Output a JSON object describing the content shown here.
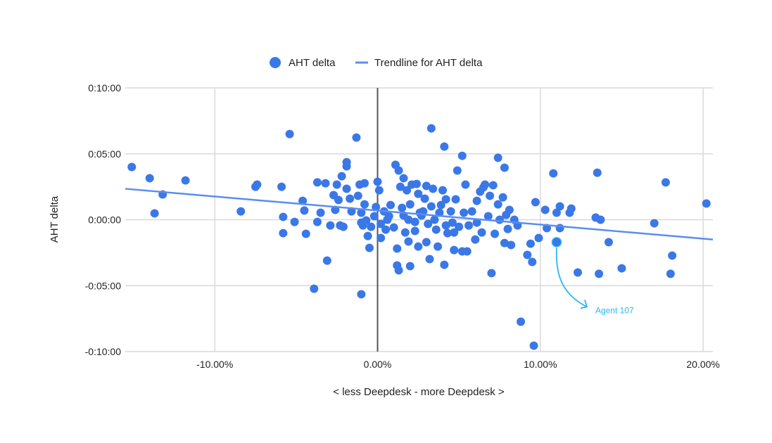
{
  "chart_data": {
    "type": "scatter",
    "title": "",
    "xlabel": "< less Deepdesk - more Deepdesk >",
    "ylabel": "AHT delta",
    "x_unit": "percent",
    "y_unit": "seconds",
    "xlim": [
      -15.5,
      20.6
    ],
    "ylim": [
      -600,
      600
    ],
    "x_ticks": [
      {
        "value": -10,
        "label": "-10.00%"
      },
      {
        "value": 0,
        "label": "0.00%"
      },
      {
        "value": 10,
        "label": "10.00%"
      },
      {
        "value": 20,
        "label": "20.00%"
      }
    ],
    "y_ticks": [
      {
        "value": 600,
        "label": "0:10:00"
      },
      {
        "value": 300,
        "label": "0:05:00"
      },
      {
        "value": 0,
        "label": "0:00:00"
      },
      {
        "value": -300,
        "label": "-0:05:00"
      },
      {
        "value": -600,
        "label": "-0:10:00"
      }
    ],
    "grid": true,
    "legend": {
      "position": "top",
      "entries": [
        "AHT delta",
        "Trendline for AHT delta"
      ]
    },
    "colors": {
      "points": "#3b78e7",
      "trendline": "#5b8def",
      "annotation": "#29b6f6",
      "grid": "#d9d9d9",
      "zero_axis": "#555555"
    },
    "series": [
      {
        "name": "AHT delta",
        "points": [
          [
            -15.1,
            240
          ],
          [
            -14.0,
            189
          ],
          [
            -13.7,
            29
          ],
          [
            -13.2,
            115
          ],
          [
            -11.8,
            179
          ],
          [
            -8.4,
            38
          ],
          [
            -7.5,
            150
          ],
          [
            -7.4,
            160
          ],
          [
            -5.9,
            150
          ],
          [
            -5.8,
            13
          ],
          [
            -5.8,
            -61
          ],
          [
            -5.4,
            390
          ],
          [
            -5.1,
            -10
          ],
          [
            -4.6,
            86
          ],
          [
            -4.5,
            42
          ],
          [
            -4.4,
            -64
          ],
          [
            -3.9,
            -314
          ],
          [
            -3.7,
            170
          ],
          [
            -3.7,
            -10
          ],
          [
            -3.5,
            32
          ],
          [
            -3.2,
            166
          ],
          [
            -3.1,
            -186
          ],
          [
            -2.9,
            -26
          ],
          [
            -2.7,
            112
          ],
          [
            -2.6,
            45
          ],
          [
            -2.5,
            160
          ],
          [
            -2.4,
            90
          ],
          [
            -2.3,
            -26
          ],
          [
            -2.2,
            198
          ],
          [
            -2.1,
            -32
          ],
          [
            -1.9,
            243
          ],
          [
            -1.9,
            262
          ],
          [
            -1.9,
            141
          ],
          [
            -1.7,
            96
          ],
          [
            -1.6,
            38
          ],
          [
            -1.3,
            374
          ],
          [
            -1.2,
            109
          ],
          [
            -1.1,
            160
          ],
          [
            -1.0,
            -339
          ],
          [
            -1.0,
            32
          ],
          [
            -1.0,
            -13
          ],
          [
            -0.9,
            -26
          ],
          [
            -0.8,
            166
          ],
          [
            -0.8,
            70
          ],
          [
            -0.7,
            -3
          ],
          [
            -0.6,
            -74
          ],
          [
            -0.5,
            -128
          ],
          [
            -0.4,
            -32
          ],
          [
            -0.2,
            16
          ],
          [
            -0.1,
            58
          ],
          [
            0,
            173
          ],
          [
            0.1,
            134
          ],
          [
            0.2,
            -19
          ],
          [
            0.2,
            -83
          ],
          [
            0.4,
            38
          ],
          [
            0.5,
            -45
          ],
          [
            0.6,
            0
          ],
          [
            0.7,
            16
          ],
          [
            0.8,
            67
          ],
          [
            1.0,
            -35
          ],
          [
            1.1,
            250
          ],
          [
            1.2,
            -208
          ],
          [
            1.2,
            -131
          ],
          [
            1.3,
            -230
          ],
          [
            1.3,
            224
          ],
          [
            1.4,
            150
          ],
          [
            1.5,
            54
          ],
          [
            1.6,
            19
          ],
          [
            1.6,
            189
          ],
          [
            1.7,
            -58
          ],
          [
            1.8,
            134
          ],
          [
            1.9,
            0
          ],
          [
            1.9,
            -99
          ],
          [
            2.0,
            -211
          ],
          [
            2.0,
            70
          ],
          [
            2.1,
            160
          ],
          [
            2.3,
            -10
          ],
          [
            2.3,
            -51
          ],
          [
            2.4,
            163
          ],
          [
            2.5,
            118
          ],
          [
            2.5,
            -122
          ],
          [
            2.6,
            32
          ],
          [
            2.7,
            19
          ],
          [
            2.8,
            38
          ],
          [
            2.9,
            96
          ],
          [
            3.0,
            154
          ],
          [
            3.0,
            -102
          ],
          [
            3.1,
            -19
          ],
          [
            3.2,
            -179
          ],
          [
            3.3,
            416
          ],
          [
            3.3,
            61
          ],
          [
            3.4,
            141
          ],
          [
            3.5,
            0
          ],
          [
            3.6,
            -45
          ],
          [
            3.7,
            -122
          ],
          [
            3.8,
            32
          ],
          [
            3.9,
            67
          ],
          [
            4.0,
            134
          ],
          [
            4.1,
            -205
          ],
          [
            4.1,
            333
          ],
          [
            4.2,
            -26
          ],
          [
            4.2,
            93
          ],
          [
            4.3,
            -61
          ],
          [
            4.5,
            38
          ],
          [
            4.6,
            -13
          ],
          [
            4.7,
            -138
          ],
          [
            4.7,
            -58
          ],
          [
            4.8,
            93
          ],
          [
            4.9,
            224
          ],
          [
            5.0,
            -32
          ],
          [
            5.2,
            -144
          ],
          [
            5.2,
            291
          ],
          [
            5.3,
            32
          ],
          [
            5.4,
            160
          ],
          [
            5.5,
            -144
          ],
          [
            5.6,
            -26
          ],
          [
            5.8,
            38
          ],
          [
            6.0,
            -90
          ],
          [
            6.1,
            -13
          ],
          [
            6.1,
            86
          ],
          [
            6.3,
            128
          ],
          [
            6.4,
            -58
          ],
          [
            6.5,
            147
          ],
          [
            6.6,
            160
          ],
          [
            6.8,
            16
          ],
          [
            6.9,
            109
          ],
          [
            7.0,
            -243
          ],
          [
            7.1,
            157
          ],
          [
            7.2,
            -64
          ],
          [
            7.4,
            282
          ],
          [
            7.4,
            70
          ],
          [
            7.5,
            0
          ],
          [
            7.7,
            102
          ],
          [
            7.8,
            -106
          ],
          [
            7.8,
            237
          ],
          [
            7.9,
            22
          ],
          [
            8.0,
            -42
          ],
          [
            8.1,
            45
          ],
          [
            8.2,
            -115
          ],
          [
            8.4,
            0
          ],
          [
            8.6,
            -26
          ],
          [
            8.8,
            -464
          ],
          [
            9.2,
            -160
          ],
          [
            9.4,
            -109
          ],
          [
            9.5,
            -192
          ],
          [
            9.6,
            -573
          ],
          [
            9.7,
            80
          ],
          [
            9.9,
            -83
          ],
          [
            10.3,
            45
          ],
          [
            10.4,
            -38
          ],
          [
            10.8,
            211
          ],
          [
            11.2,
            -38
          ],
          [
            11.2,
            61
          ],
          [
            11.0,
            32
          ],
          [
            11.8,
            32
          ],
          [
            11.9,
            51
          ],
          [
            12.3,
            -240
          ],
          [
            13.4,
            10
          ],
          [
            13.5,
            214
          ],
          [
            13.6,
            -246
          ],
          [
            13.7,
            0
          ],
          [
            14.2,
            -102
          ],
          [
            15.0,
            -221
          ],
          [
            17.0,
            -16
          ],
          [
            17.7,
            170
          ],
          [
            18.0,
            -246
          ],
          [
            18.1,
            -163
          ],
          [
            20.2,
            74
          ]
        ]
      }
    ],
    "trendline": {
      "name": "Trendline for AHT delta",
      "from": [
        -15.5,
        141
      ],
      "to": [
        20.6,
        -90
      ]
    },
    "annotations": [
      {
        "label": "Agent 107",
        "point": [
          11.0,
          -102
        ]
      }
    ]
  }
}
